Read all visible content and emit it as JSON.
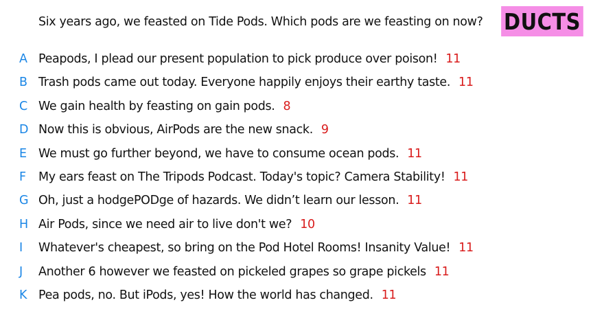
{
  "question": "Six years ago, we feasted on Tide Pods. Which pods are we feasting on now?",
  "badge": {
    "label": "DUCTS",
    "color": "#f58ee6"
  },
  "colors": {
    "letter": "#1a86e6",
    "count": "#d91c1c"
  },
  "answers": [
    {
      "letter": "A",
      "text": "Peapods, I plead our present population to pick produce over poison!",
      "count": "11"
    },
    {
      "letter": "B",
      "text": "Trash pods came out today. Everyone happily enjoys their earthy taste.",
      "count": "11"
    },
    {
      "letter": "C",
      "text": "We gain health by feasting on gain pods.",
      "count": "8"
    },
    {
      "letter": "D",
      "text": "Now this is obvious, AirPods are the new snack.",
      "count": "9"
    },
    {
      "letter": "E",
      "text": "We must go further beyond, we have to consume ocean pods.",
      "count": "11"
    },
    {
      "letter": "F",
      "text": "My ears feast on The Tripods Podcast. Today's topic? Camera Stability!",
      "count": "11"
    },
    {
      "letter": "G",
      "text": "Oh, just a hodgePODge of hazards. We didn’t learn our lesson.",
      "count": "11"
    },
    {
      "letter": "H",
      "text": "Air Pods, since we need air to live don't we?",
      "count": "10"
    },
    {
      "letter": "I",
      "text": "Whatever's cheapest, so bring on the Pod Hotel Rooms! Insanity Value!",
      "count": "11"
    },
    {
      "letter": "J",
      "text": "Another 6 however we feasted on pickeled grapes so grape pickels",
      "count": "11"
    },
    {
      "letter": "K",
      "text": "Pea pods, no. But iPods, yes! How the world has changed.",
      "count": "11"
    }
  ]
}
